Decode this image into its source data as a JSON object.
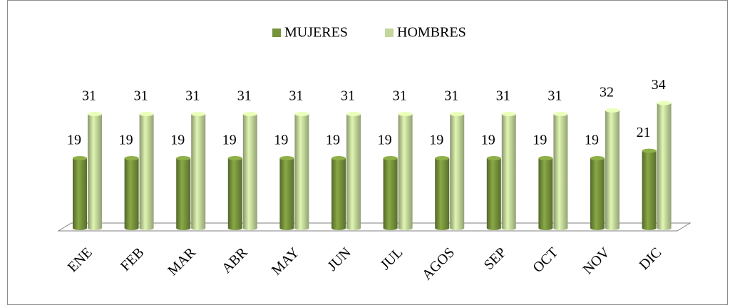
{
  "chart_data": {
    "type": "bar3d",
    "categories": [
      "ENE",
      "FEB",
      "MAR",
      "ABR",
      "MAY",
      "JUN",
      "JUL",
      "AGOS",
      "SEP",
      "OCT",
      "NOV",
      "DIC"
    ],
    "series": [
      {
        "name": "MUJERES",
        "color": "#77933c",
        "values": [
          19,
          19,
          19,
          19,
          19,
          19,
          19,
          19,
          19,
          19,
          19,
          21
        ]
      },
      {
        "name": "HOMBRES",
        "color": "#c3d69b",
        "values": [
          31,
          31,
          31,
          31,
          31,
          31,
          31,
          31,
          31,
          31,
          32,
          34
        ]
      }
    ],
    "legend": "top",
    "data_labels": true
  }
}
